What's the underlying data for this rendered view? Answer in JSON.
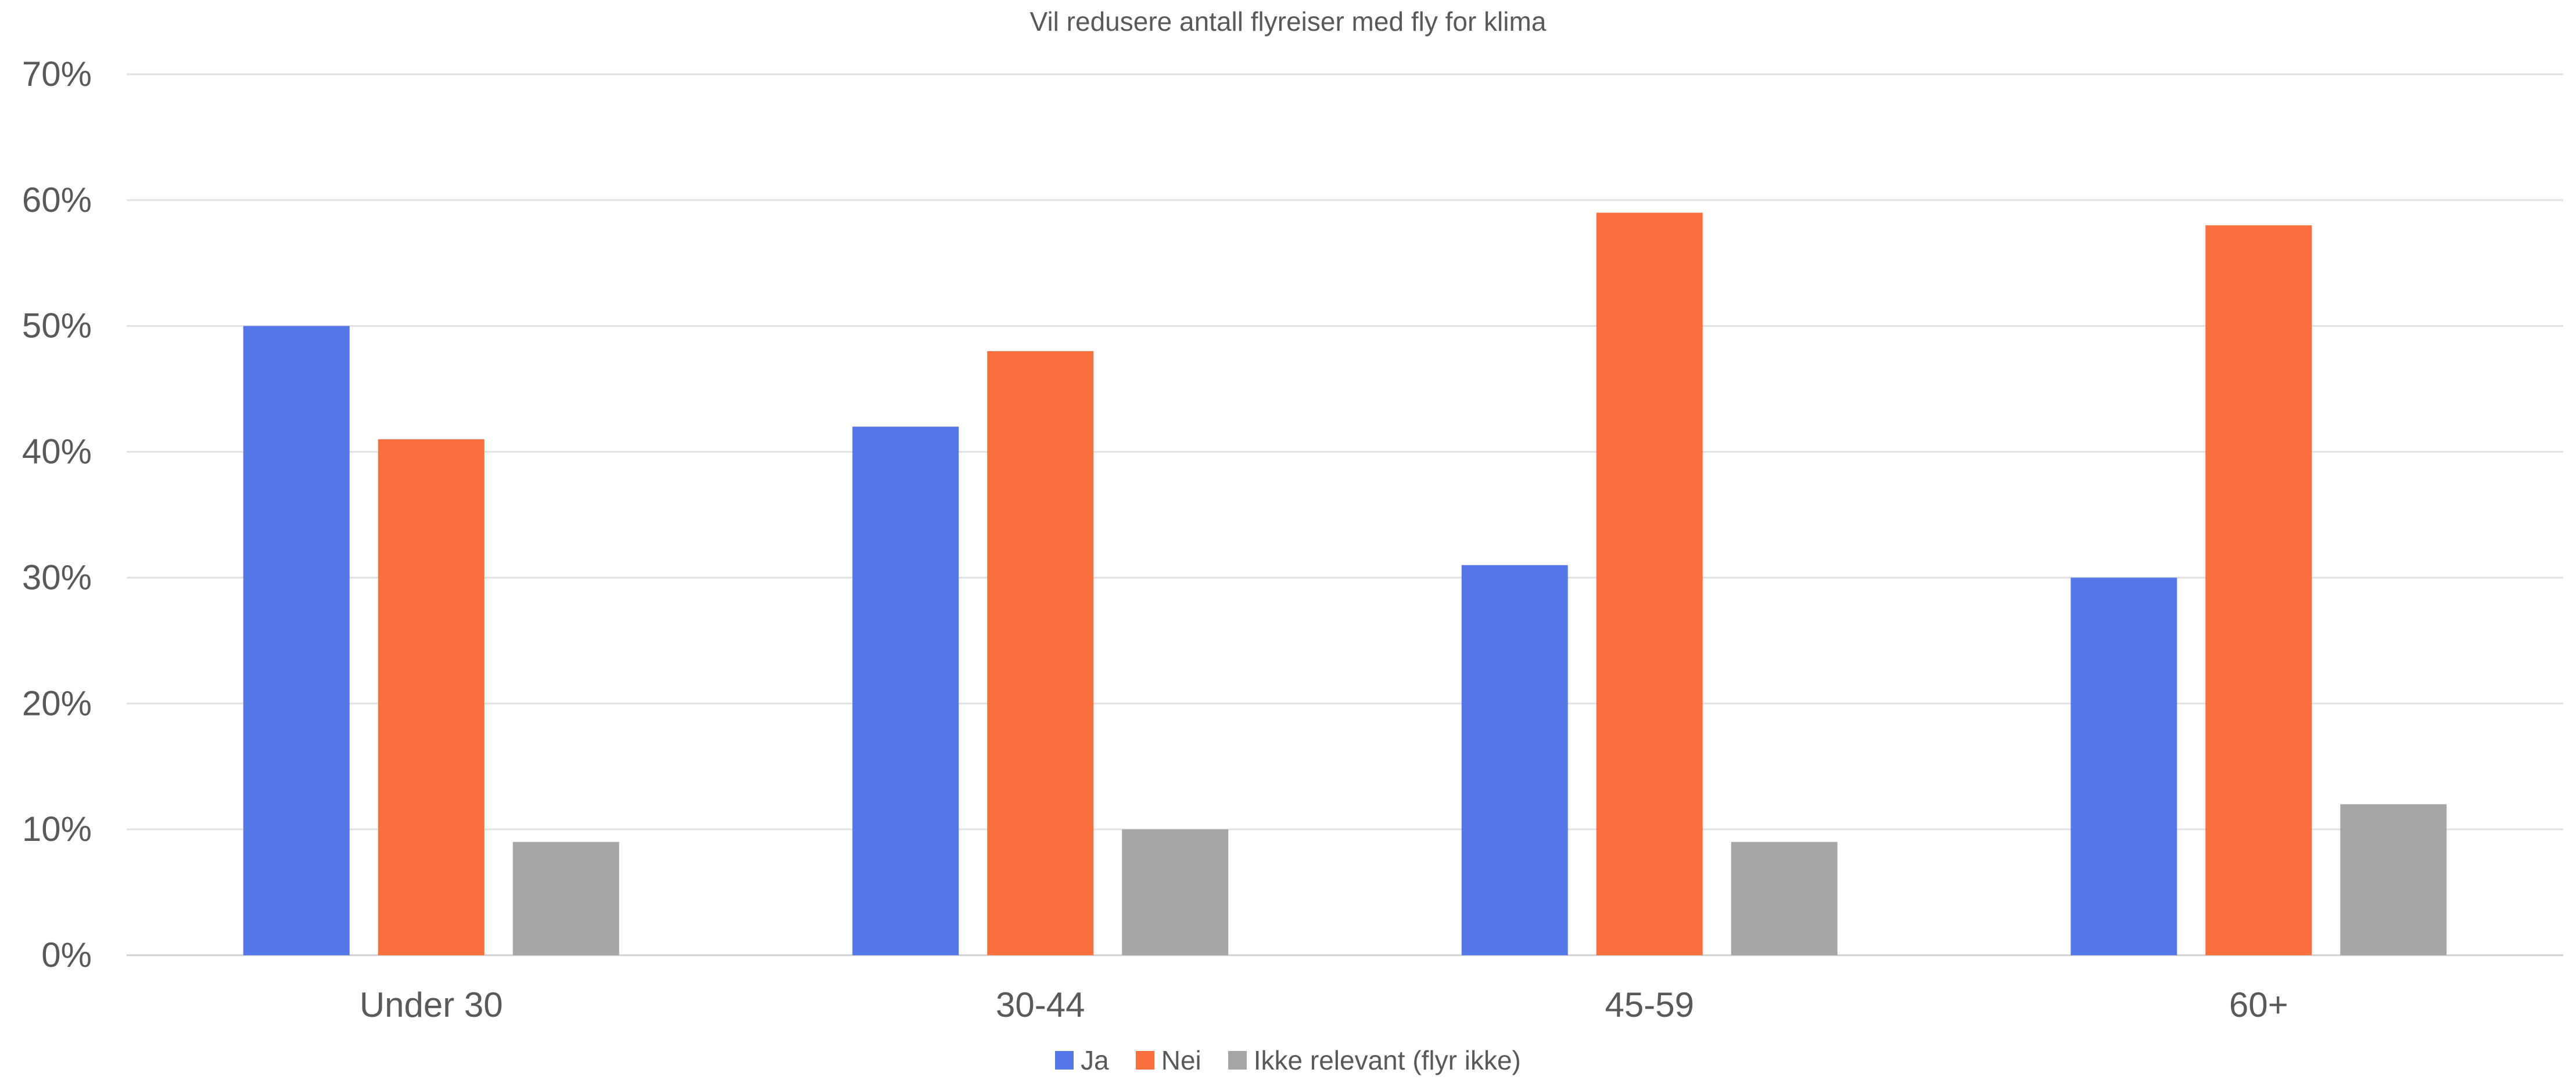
{
  "chart_data": {
    "type": "bar",
    "title": "Vil redusere antall flyreiser med fly for klima",
    "categories": [
      "Under 30",
      "30-44",
      "45-59",
      "60+"
    ],
    "series": [
      {
        "name": "Ja",
        "color": "#5677E7",
        "values": [
          50,
          42,
          31,
          30
        ]
      },
      {
        "name": "Nei",
        "color": "#F96F3D",
        "values": [
          41,
          48,
          59,
          58
        ]
      },
      {
        "name": "Ikke relevant (flyr ikke)",
        "color": "#A6A6A6",
        "values": [
          9,
          10,
          9,
          12
        ]
      }
    ],
    "ylim": [
      0,
      70
    ],
    "yticks": [
      "0%",
      "10%",
      "20%",
      "30%",
      "40%",
      "50%",
      "60%",
      "70%"
    ],
    "grid": true,
    "legend_position": "bottom"
  }
}
